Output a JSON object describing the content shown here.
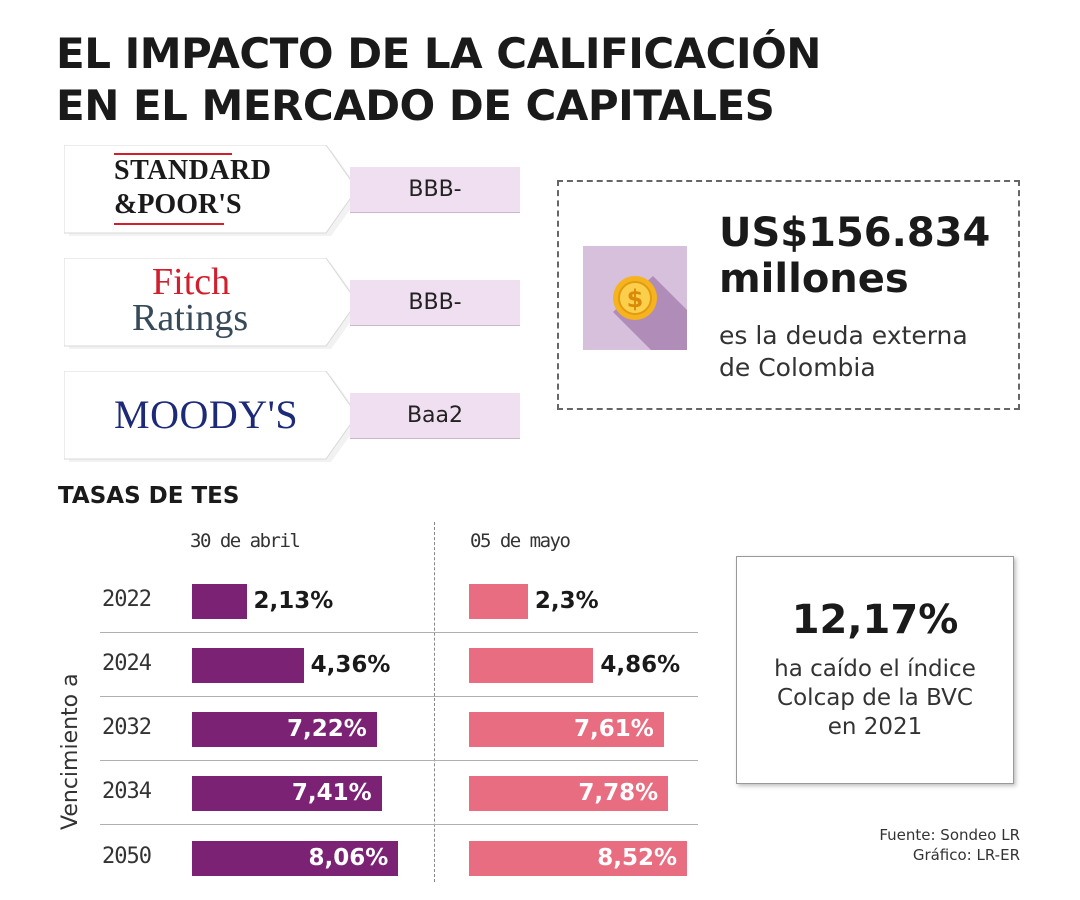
{
  "title": {
    "line1": "EL IMPACTO DE LA CALIFICACIÓN",
    "line2": "EN EL MERCADO DE CAPITALES"
  },
  "agencies": [
    {
      "name": "Standard & Poor's",
      "logo": [
        "STANDARD",
        "&POOR'S"
      ],
      "rating": "BBB-"
    },
    {
      "name": "Fitch Ratings",
      "logo": [
        "Fitch",
        "Ratings"
      ],
      "rating": "BBB-"
    },
    {
      "name": "Moody's",
      "logo": [
        "MOODY'S"
      ],
      "rating": "Baa2"
    }
  ],
  "debt": {
    "amount_line1": "US$156.834",
    "amount_line2": "millones",
    "desc_line1": "es la deuda externa",
    "desc_line2": "de Colombia",
    "icon": "coin-icon"
  },
  "colcap": {
    "value": "12,17%",
    "line1": "ha caído el índice",
    "line2": "Colcap de la BVC",
    "line3": "en 2021"
  },
  "source": {
    "line1": "Fuente: Sondeo LR",
    "line2": "Gráfico: LR-ER"
  },
  "colors": {
    "april": "#7b2275",
    "may": "#e96d80",
    "rating_bg": "#f0dff0",
    "icon_bg": "#d6c0dc",
    "coin": "#f6b31e"
  },
  "chart_data": {
    "type": "bar",
    "orientation": "horizontal",
    "title": "TASAS DE TES",
    "ylabel": "Vencimiento a",
    "categories": [
      "2022",
      "2024",
      "2032",
      "2034",
      "2050"
    ],
    "series": [
      {
        "name": "30 de abril",
        "values": [
          2.13,
          4.36,
          7.22,
          7.41,
          8.06
        ],
        "labels": [
          "2,13%",
          "4,36%",
          "7,22%",
          "7,41%",
          "8,06%"
        ]
      },
      {
        "name": "05 de mayo",
        "values": [
          2.3,
          4.86,
          7.61,
          7.78,
          8.52
        ],
        "labels": [
          "2,3%",
          "4,86%",
          "7,61%",
          "7,78%",
          "8,52%"
        ]
      }
    ],
    "xlim": [
      0,
      9.5
    ]
  }
}
